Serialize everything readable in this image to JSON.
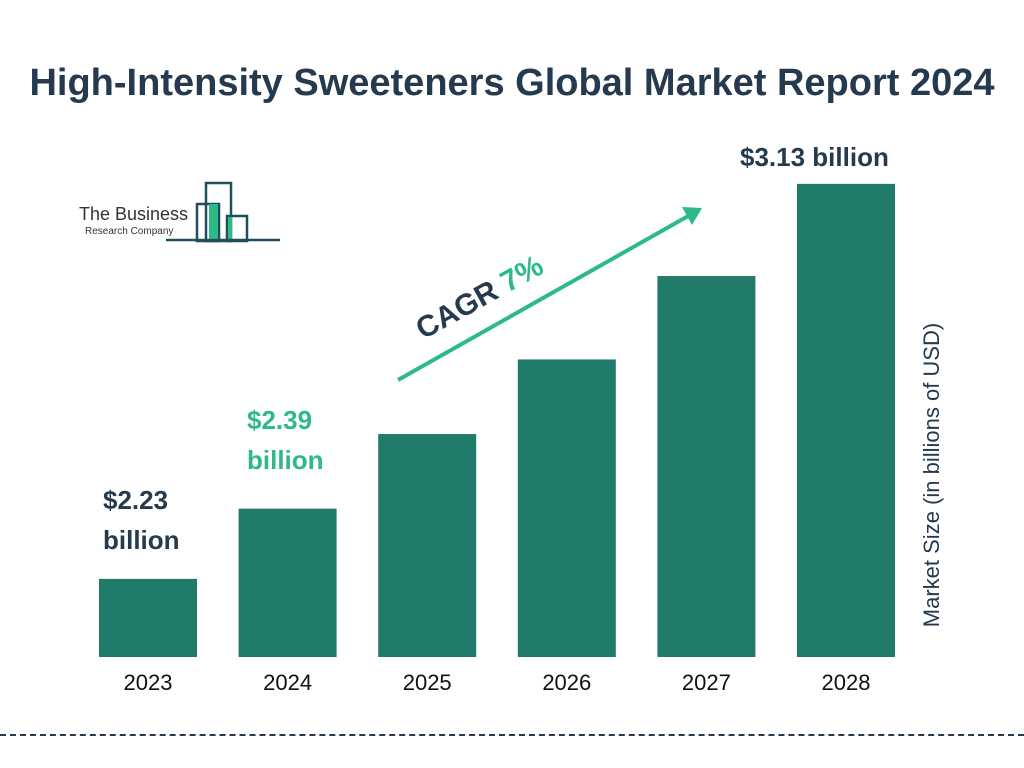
{
  "title": "High-Intensity Sweeteners Global Market Report 2024",
  "logo": {
    "line1": "The Business",
    "line2": "Research Company"
  },
  "colors": {
    "bar": "#217b6b",
    "title": "#253a4f",
    "accent": "#2dba87"
  },
  "chart_data": {
    "type": "bar",
    "categories": [
      "2023",
      "2024",
      "2025",
      "2026",
      "2027",
      "2028"
    ],
    "values": [
      2.23,
      2.39,
      2.56,
      2.73,
      2.92,
      3.13
    ],
    "data_labels": {
      "2023": "$2.23 billion",
      "2024": "$2.39 billion",
      "2028": "$3.13 billion"
    },
    "ylabel": "Market Size (in billions of USD)",
    "annotation": {
      "label": "CAGR",
      "value": "7%"
    },
    "grid": false
  }
}
